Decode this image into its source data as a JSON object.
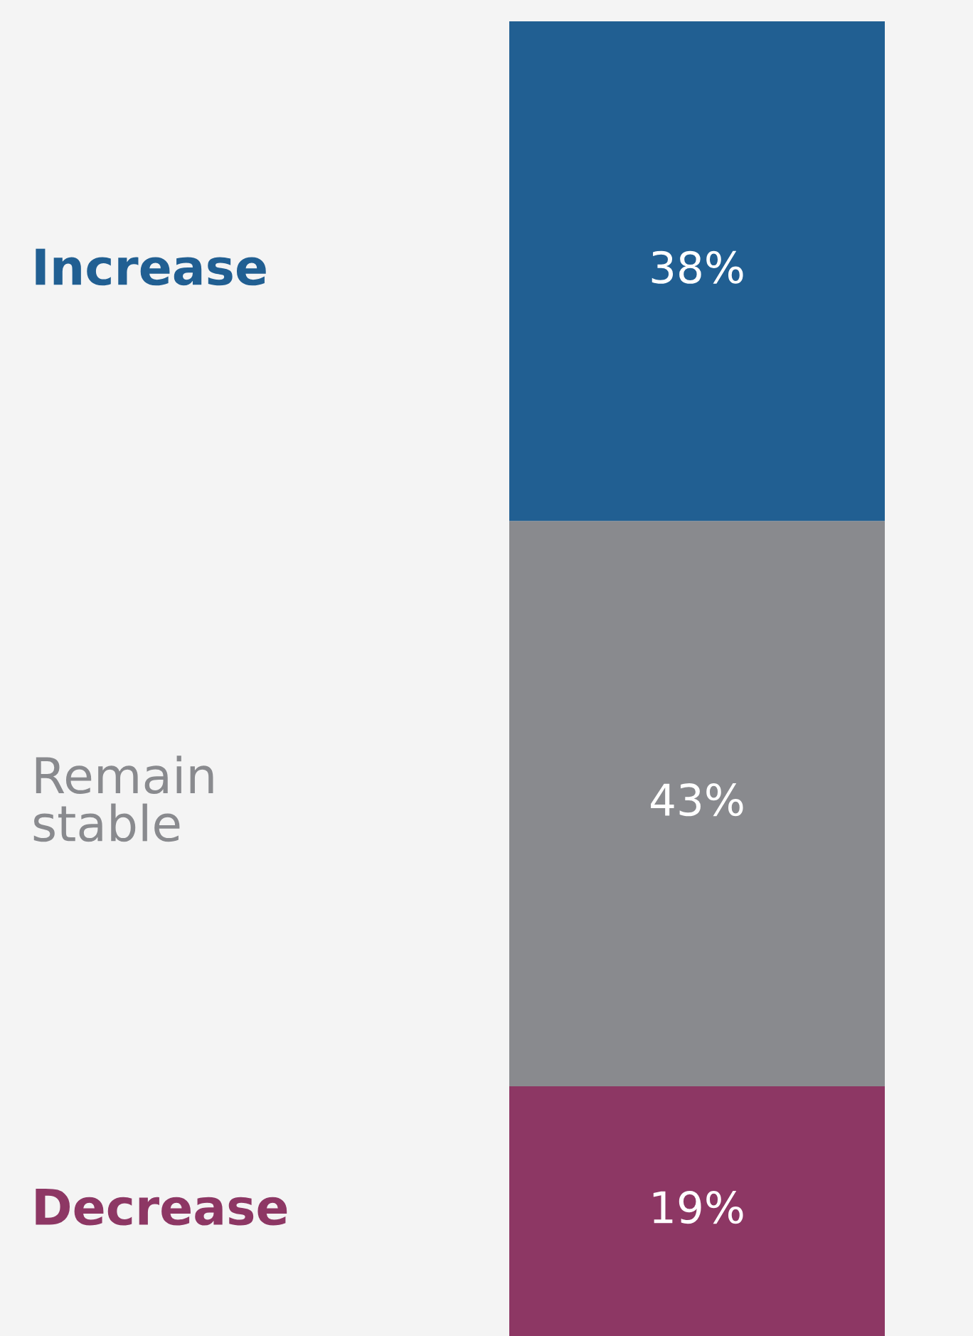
{
  "chart_data": {
    "type": "bar",
    "stacked": true,
    "categories": [
      null
    ],
    "legend": false,
    "series": [
      {
        "name": "Decrease",
        "color": "#8d3764",
        "values": [
          19
        ],
        "value_labels": [
          "19%"
        ]
      },
      {
        "name": "Remain\nstable",
        "color": "#898a8e",
        "values": [
          43
        ],
        "value_labels": [
          "43%"
        ]
      },
      {
        "name": "Increase",
        "color": "#215f92",
        "values": [
          38
        ],
        "value_labels": [
          "38%"
        ]
      }
    ]
  }
}
